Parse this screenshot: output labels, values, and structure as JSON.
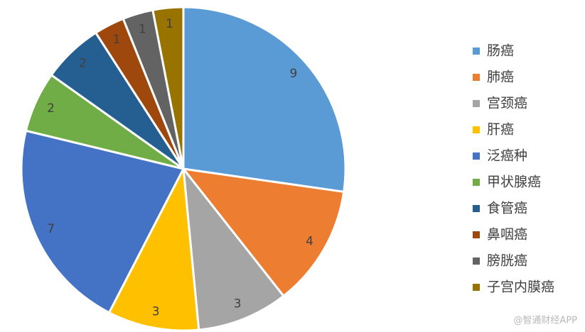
{
  "chart_data": {
    "type": "pie",
    "categories": [
      "肠癌",
      "肺癌",
      "宫颈癌",
      "肝癌",
      "泛癌种",
      "甲状腺癌",
      "食管癌",
      "鼻咽癌",
      "膀胱癌",
      "子宫内膜癌"
    ],
    "values": [
      9,
      4,
      3,
      3,
      7,
      2,
      2,
      1,
      1,
      1
    ],
    "colors": [
      "#5b9bd5",
      "#ed7d31",
      "#a5a5a5",
      "#ffc000",
      "#4472c4",
      "#70ad47",
      "#255e91",
      "#9e480e",
      "#636363",
      "#997300"
    ],
    "legend": "right"
  },
  "watermark": "@智通财经APP"
}
